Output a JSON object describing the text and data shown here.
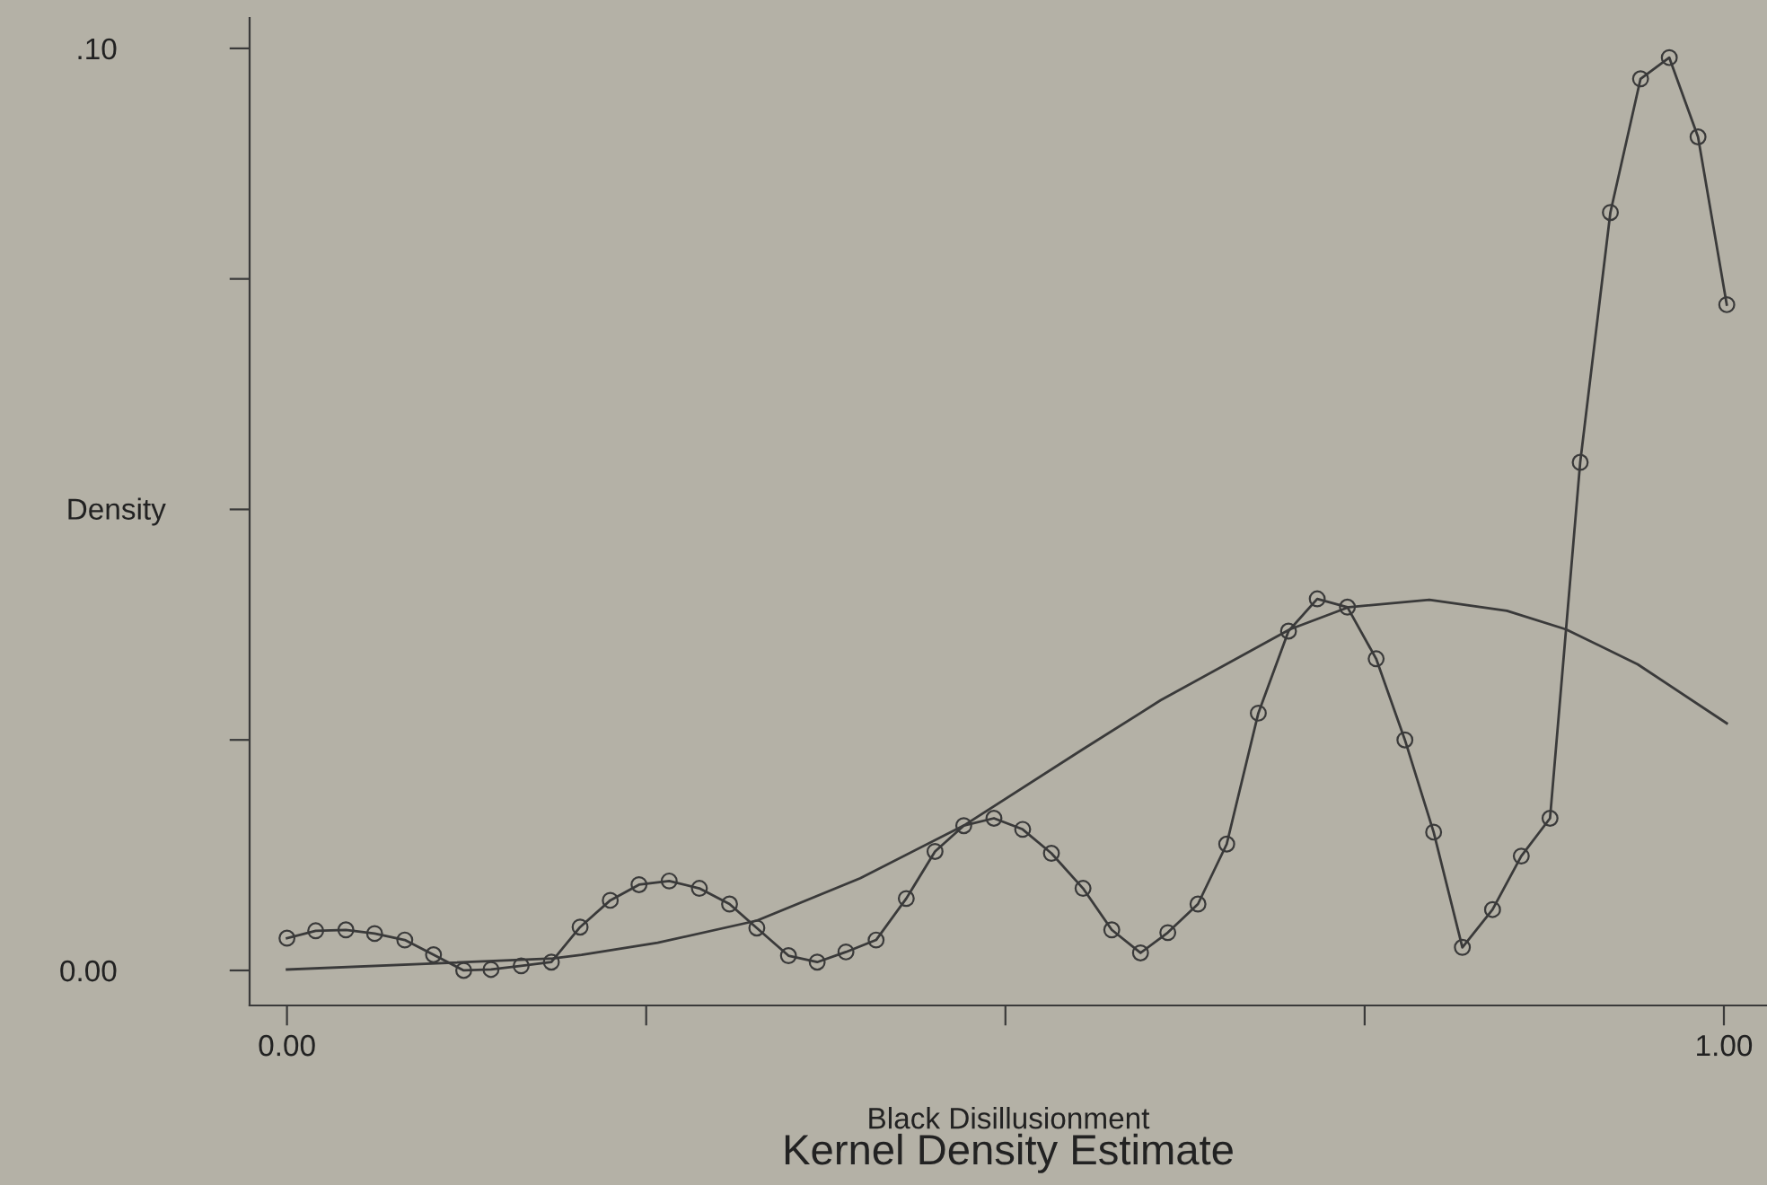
{
  "chart_data": {
    "type": "line",
    "title": "Kernel Density Estimate",
    "xlabel": "Black Disillusionment",
    "ylabel": "Density",
    "xlim": [
      -0.026,
      1.03
    ],
    "ylim": [
      -0.0038,
      0.1033
    ],
    "xticks": [
      {
        "value": 0,
        "label": "0.00"
      },
      {
        "value": 0.25,
        "label": null
      },
      {
        "value": 0.5,
        "label": null
      },
      {
        "value": 0.75,
        "label": null
      },
      {
        "value": 1,
        "label": "1.00"
      }
    ],
    "yticks": [
      {
        "value": 0,
        "label": "0.00"
      },
      {
        "value": 0.025,
        "label": null
      },
      {
        "value": 0.05,
        "label": null
      },
      {
        "value": 0.075,
        "label": null
      },
      {
        "value": 0.1,
        "label": ".10"
      }
    ],
    "grid": false,
    "legend": false,
    "series": [
      {
        "color": "#3a3a3a",
        "marker": "circle",
        "x": [
          0.0,
          0.02,
          0.041,
          0.061,
          0.082,
          0.102,
          0.123,
          0.142,
          0.163,
          0.184,
          0.204,
          0.225,
          0.245,
          0.266,
          0.287,
          0.308,
          0.327,
          0.349,
          0.369,
          0.389,
          0.41,
          0.431,
          0.451,
          0.471,
          0.492,
          0.512,
          0.532,
          0.554,
          0.574,
          0.594,
          0.613,
          0.634,
          0.654,
          0.676,
          0.697,
          0.717,
          0.738,
          0.758,
          0.778,
          0.798,
          0.818,
          0.839,
          0.859,
          0.879,
          0.9,
          0.921,
          0.942,
          0.962,
          0.982,
          1.002
        ],
        "values": [
          0.0035,
          0.0043,
          0.0044,
          0.004,
          0.0033,
          0.0017,
          0.0,
          0.0001,
          0.0005,
          0.0009,
          0.0047,
          0.0076,
          0.0093,
          0.0097,
          0.0089,
          0.0072,
          0.0046,
          0.0016,
          0.0009,
          0.002,
          0.0033,
          0.0078,
          0.0129,
          0.0157,
          0.0165,
          0.0153,
          0.0127,
          0.0089,
          0.0044,
          0.0019,
          0.0041,
          0.0072,
          0.0137,
          0.0279,
          0.0368,
          0.0403,
          0.0394,
          0.0338,
          0.025,
          0.015,
          0.0025,
          0.0066,
          0.0124,
          0.0165,
          0.0551,
          0.0822,
          0.0967,
          0.099,
          0.0904,
          0.0722
        ]
      },
      {
        "color": "#3a3a3a",
        "marker": "none",
        "x": [
          0,
          0.185,
          0.205,
          0.258,
          0.327,
          0.399,
          0.472,
          0.554,
          0.608,
          0.698,
          0.739,
          0.795,
          0.849,
          0.89,
          0.94,
          1.002
        ],
        "values": [
          0.0001,
          0.0013,
          0.0017,
          0.003,
          0.0054,
          0.01,
          0.0158,
          0.024,
          0.0293,
          0.037,
          0.0394,
          0.0402,
          0.039,
          0.037,
          0.0332,
          0.0268
        ]
      }
    ]
  }
}
